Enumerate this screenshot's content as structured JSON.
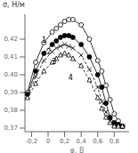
{
  "chart_data": {
    "type": "line",
    "xlabel": "φ, В",
    "ylabel": "σ, Н/м",
    "color": "#000000",
    "xlim": [
      -0.28,
      0.98
    ],
    "ylim": [
      0.368,
      0.434
    ],
    "xticks": [
      {
        "value": -0.2,
        "label": "-0,2"
      },
      0,
      {
        "value": 0.2,
        "label": "0,2"
      },
      {
        "value": 0.4,
        "label": "0,4"
      },
      {
        "value": 0.6,
        "label": "0,6"
      },
      {
        "value": 0.8,
        "label": "0,8"
      }
    ],
    "yticks": [
      {
        "value": 0.37,
        "label": "0,37"
      },
      {
        "value": 0.38,
        "label": "0,38"
      },
      {
        "value": 0.39,
        "label": "0,39"
      },
      {
        "value": 0.4,
        "label": "0,40"
      },
      {
        "value": 0.41,
        "label": "0,41"
      },
      {
        "value": 0.42,
        "label": "0,42"
      }
    ],
    "x": [
      -0.25,
      -0.15,
      -0.05,
      0.05,
      0.1,
      0.15,
      0.2,
      0.25,
      0.3,
      0.4,
      0.5,
      0.6,
      0.65,
      0.7,
      0.75,
      0.8,
      0.85,
      0.9
    ],
    "series": [
      {
        "values": [
          0.39,
          0.407,
          0.418,
          0.424,
          0.426,
          0.428,
          0.43,
          0.431,
          0.431,
          0.428,
          0.42,
          0.408,
          0.402,
          0.394,
          0.386,
          0.378,
          0.374,
          0.371
        ],
        "marker": "circle_open",
        "line_style": "solid"
      },
      {
        "values": [
          0.389,
          0.402,
          0.412,
          0.417,
          0.419,
          0.421,
          0.422,
          0.422,
          0.421,
          0.417,
          0.41,
          0.4,
          0.393,
          0.384,
          0.376,
          0.373,
          0.372,
          0.371
        ],
        "marker": "circle",
        "line_style": "solid"
      },
      {
        "values": [
          0.388,
          0.399,
          0.408,
          0.413,
          0.415,
          0.416,
          0.417,
          0.416,
          0.415,
          0.411,
          0.403,
          0.393,
          0.385,
          0.379,
          0.374,
          0.372,
          0.371,
          0.371
        ],
        "marker": "x",
        "line_style": "dashed"
      },
      {
        "values": [
          0.387,
          0.395,
          0.402,
          0.407,
          0.409,
          0.411,
          0.412,
          0.411,
          0.409,
          0.405,
          0.397,
          0.387,
          0.381,
          0.376,
          0.373,
          0.371,
          0.371,
          0.371
        ],
        "marker": "triangle_open",
        "line_style": "dashed"
      }
    ],
    "annotations": [
      {
        "text": "1",
        "x": -0.14,
        "y": 0.4195
      },
      {
        "text": "2",
        "x": -0.08,
        "y": 0.413
      },
      {
        "text": "3",
        "x": -0.02,
        "y": 0.4075
      },
      {
        "text": "4",
        "x": 0.18,
        "y": 0.3985
      }
    ]
  }
}
